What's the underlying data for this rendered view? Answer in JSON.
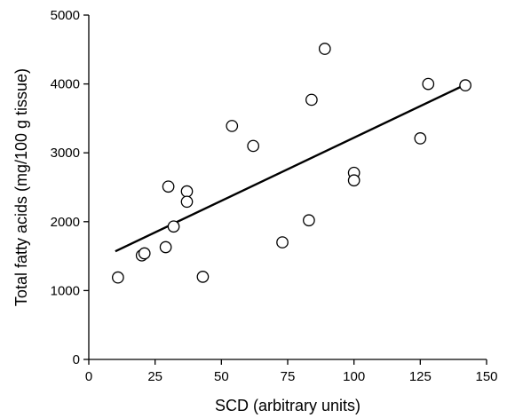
{
  "chart_data": {
    "type": "scatter",
    "title": "",
    "xlabel": "SCD (arbitrary units)",
    "ylabel": "Total fatty acids (mg/100 g tissue)",
    "xlim": [
      0,
      150
    ],
    "ylim": [
      0,
      5000
    ],
    "xticks": [
      0,
      25,
      50,
      75,
      100,
      125,
      150
    ],
    "yticks": [
      0,
      1000,
      2000,
      3000,
      4000,
      5000
    ],
    "grid": false,
    "legend": "none",
    "marker": "open-circle",
    "points": [
      {
        "x": 11,
        "y": 1190
      },
      {
        "x": 20,
        "y": 1510
      },
      {
        "x": 21,
        "y": 1540
      },
      {
        "x": 29,
        "y": 1630
      },
      {
        "x": 30,
        "y": 2510
      },
      {
        "x": 32,
        "y": 1930
      },
      {
        "x": 37,
        "y": 2440
      },
      {
        "x": 37,
        "y": 2290
      },
      {
        "x": 43,
        "y": 1200
      },
      {
        "x": 54,
        "y": 3390
      },
      {
        "x": 62,
        "y": 3100
      },
      {
        "x": 73,
        "y": 1700
      },
      {
        "x": 83,
        "y": 2020
      },
      {
        "x": 84,
        "y": 3770
      },
      {
        "x": 89,
        "y": 4510
      },
      {
        "x": 100,
        "y": 2710
      },
      {
        "x": 100,
        "y": 2600
      },
      {
        "x": 125,
        "y": 3210
      },
      {
        "x": 128,
        "y": 4000
      },
      {
        "x": 142,
        "y": 3980
      }
    ],
    "trendline": {
      "x": [
        10,
        142
      ],
      "y": [
        1570,
        3990
      ]
    },
    "colors": {
      "axis": "#000000",
      "marker_stroke": "#000000",
      "marker_fill": "#ffffff",
      "line": "#000000"
    }
  }
}
